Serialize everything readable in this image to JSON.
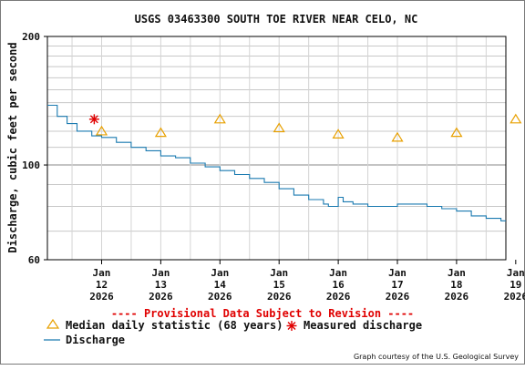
{
  "chart_data": {
    "type": "line",
    "title": "USGS 03463300 SOUTH TOE RIVER NEAR CELO, NC",
    "ylabel": "Discharge, cubic feet per second",
    "y_scale": "log",
    "ylim": [
      60,
      200
    ],
    "y_tick_labels": [
      "200",
      "100",
      "60"
    ],
    "y_ticks": [
      200,
      100,
      60
    ],
    "y_minor_gridlines": [
      70,
      80,
      90,
      110,
      120,
      130,
      140,
      150,
      160,
      170,
      180,
      190
    ],
    "grid": true,
    "x_range": [
      "2026-01-11 14:00",
      "2026-01-19 08:00"
    ],
    "x_ticks": [
      {
        "month": "Jan",
        "day": "12",
        "year": "2026",
        "x": "2026-01-12 12:00"
      },
      {
        "month": "Jan",
        "day": "13",
        "year": "2026",
        "x": "2026-01-13 12:00"
      },
      {
        "month": "Jan",
        "day": "14",
        "year": "2026",
        "x": "2026-01-14 12:00"
      },
      {
        "month": "Jan",
        "day": "15",
        "year": "2026",
        "x": "2026-01-15 12:00"
      },
      {
        "month": "Jan",
        "day": "16",
        "year": "2026",
        "x": "2026-01-16 12:00"
      },
      {
        "month": "Jan",
        "day": "17",
        "year": "2026",
        "x": "2026-01-17 12:00"
      },
      {
        "month": "Jan",
        "day": "18",
        "year": "2026",
        "x": "2026-01-18 12:00"
      },
      {
        "month": "Jan",
        "day": "19",
        "year": "2026",
        "x": "2026-01-19 12:00"
      }
    ],
    "series": [
      {
        "name": "Median daily statistic (68 years)",
        "marker": "triangle",
        "color": "#e8a000",
        "points": [
          {
            "x": "2026-01-12 12:00",
            "y": 120
          },
          {
            "x": "2026-01-13 12:00",
            "y": 119
          },
          {
            "x": "2026-01-14 12:00",
            "y": 128
          },
          {
            "x": "2026-01-15 12:00",
            "y": 122
          },
          {
            "x": "2026-01-16 12:00",
            "y": 118
          },
          {
            "x": "2026-01-17 12:00",
            "y": 116
          },
          {
            "x": "2026-01-18 12:00",
            "y": 119
          },
          {
            "x": "2026-01-19 12:00",
            "y": 128
          }
        ]
      },
      {
        "name": "Measured discharge",
        "marker": "asterisk",
        "color": "#e00000",
        "points": [
          {
            "x": "2026-01-12 09:00",
            "y": 128
          }
        ]
      },
      {
        "name": "Discharge",
        "marker": "line",
        "color": "#1a7ab0",
        "points": [
          {
            "x": "2026-01-11 14:00",
            "y": 138
          },
          {
            "x": "2026-01-11 18:00",
            "y": 130
          },
          {
            "x": "2026-01-11 22:00",
            "y": 125
          },
          {
            "x": "2026-01-12 02:00",
            "y": 120
          },
          {
            "x": "2026-01-12 08:00",
            "y": 117
          },
          {
            "x": "2026-01-12 12:00",
            "y": 116
          },
          {
            "x": "2026-01-12 18:00",
            "y": 113
          },
          {
            "x": "2026-01-13 00:00",
            "y": 110
          },
          {
            "x": "2026-01-13 06:00",
            "y": 108
          },
          {
            "x": "2026-01-13 12:00",
            "y": 105
          },
          {
            "x": "2026-01-13 18:00",
            "y": 104
          },
          {
            "x": "2026-01-14 00:00",
            "y": 101
          },
          {
            "x": "2026-01-14 06:00",
            "y": 99
          },
          {
            "x": "2026-01-14 12:00",
            "y": 97
          },
          {
            "x": "2026-01-14 18:00",
            "y": 95
          },
          {
            "x": "2026-01-15 00:00",
            "y": 93
          },
          {
            "x": "2026-01-15 06:00",
            "y": 91
          },
          {
            "x": "2026-01-15 12:00",
            "y": 88
          },
          {
            "x": "2026-01-15 18:00",
            "y": 85
          },
          {
            "x": "2026-01-16 00:00",
            "y": 83
          },
          {
            "x": "2026-01-16 06:00",
            "y": 81
          },
          {
            "x": "2026-01-16 08:00",
            "y": 80
          },
          {
            "x": "2026-01-16 12:00",
            "y": 84
          },
          {
            "x": "2026-01-16 14:00",
            "y": 82
          },
          {
            "x": "2026-01-16 18:00",
            "y": 81
          },
          {
            "x": "2026-01-17 00:00",
            "y": 80
          },
          {
            "x": "2026-01-17 06:00",
            "y": 80
          },
          {
            "x": "2026-01-17 12:00",
            "y": 81
          },
          {
            "x": "2026-01-17 18:00",
            "y": 81
          },
          {
            "x": "2026-01-18 00:00",
            "y": 80
          },
          {
            "x": "2026-01-18 06:00",
            "y": 79
          },
          {
            "x": "2026-01-18 12:00",
            "y": 78
          },
          {
            "x": "2026-01-18 18:00",
            "y": 76
          },
          {
            "x": "2026-01-19 00:00",
            "y": 75
          },
          {
            "x": "2026-01-19 06:00",
            "y": 74
          },
          {
            "x": "2026-01-19 08:00",
            "y": 74
          }
        ]
      }
    ],
    "legend_position": "bottom",
    "annotations": [
      "---- Provisional Data Subject to Revision ----"
    ],
    "credit": "Graph courtesy of the U.S. Geological Survey"
  }
}
